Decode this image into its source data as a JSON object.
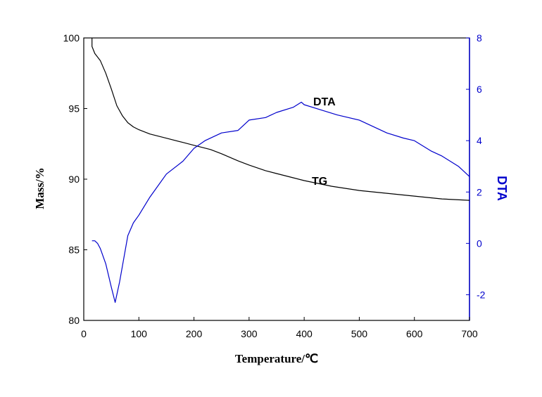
{
  "chart_data": {
    "type": "line",
    "xlabel": "Temperature/℃",
    "ylabel_left": "Mass/%",
    "ylabel_right": "DTA",
    "xlim": [
      0,
      700
    ],
    "ylim_left": [
      80,
      100
    ],
    "ylim_right": [
      -3,
      8
    ],
    "x_ticks": [
      0,
      100,
      200,
      300,
      400,
      500,
      600,
      700
    ],
    "y_left_ticks": [
      80,
      85,
      90,
      95,
      100
    ],
    "y_right_ticks": [
      -2,
      0,
      2,
      4,
      6,
      8
    ],
    "right_axis_color": "#0000cc",
    "tg_color": "#000000",
    "dta_color": "#0000cc",
    "annotations": {
      "dta": "DTA",
      "tg": "TG"
    },
    "series": [
      {
        "name": "TG",
        "axis": "left",
        "x": [
          15,
          15,
          20,
          30,
          40,
          50,
          60,
          70,
          80,
          90,
          100,
          120,
          150,
          180,
          200,
          230,
          250,
          280,
          300,
          330,
          350,
          380,
          400,
          450,
          500,
          550,
          600,
          650,
          700
        ],
        "y": [
          100,
          99.4,
          98.9,
          98.4,
          97.5,
          96.4,
          95.2,
          94.5,
          94.0,
          93.7,
          93.5,
          93.2,
          92.9,
          92.6,
          92.4,
          92.1,
          91.8,
          91.3,
          91.0,
          90.6,
          90.4,
          90.1,
          89.9,
          89.5,
          89.2,
          89.0,
          88.8,
          88.6,
          88.5
        ]
      },
      {
        "name": "DTA",
        "axis": "right",
        "x": [
          15,
          20,
          25,
          30,
          40,
          50,
          57,
          65,
          70,
          80,
          90,
          100,
          120,
          150,
          180,
          200,
          220,
          250,
          280,
          300,
          330,
          350,
          380,
          395,
          400,
          430,
          460,
          500,
          550,
          580,
          600,
          630,
          650,
          680,
          700
        ],
        "y": [
          0.1,
          0.1,
          0.0,
          -0.2,
          -0.8,
          -1.7,
          -2.3,
          -1.5,
          -0.9,
          0.3,
          0.8,
          1.1,
          1.8,
          2.7,
          3.2,
          3.7,
          4.0,
          4.3,
          4.4,
          4.8,
          4.9,
          5.1,
          5.3,
          5.5,
          5.4,
          5.2,
          5.0,
          4.8,
          4.3,
          4.1,
          4.0,
          3.6,
          3.4,
          3.0,
          2.6
        ]
      }
    ]
  }
}
